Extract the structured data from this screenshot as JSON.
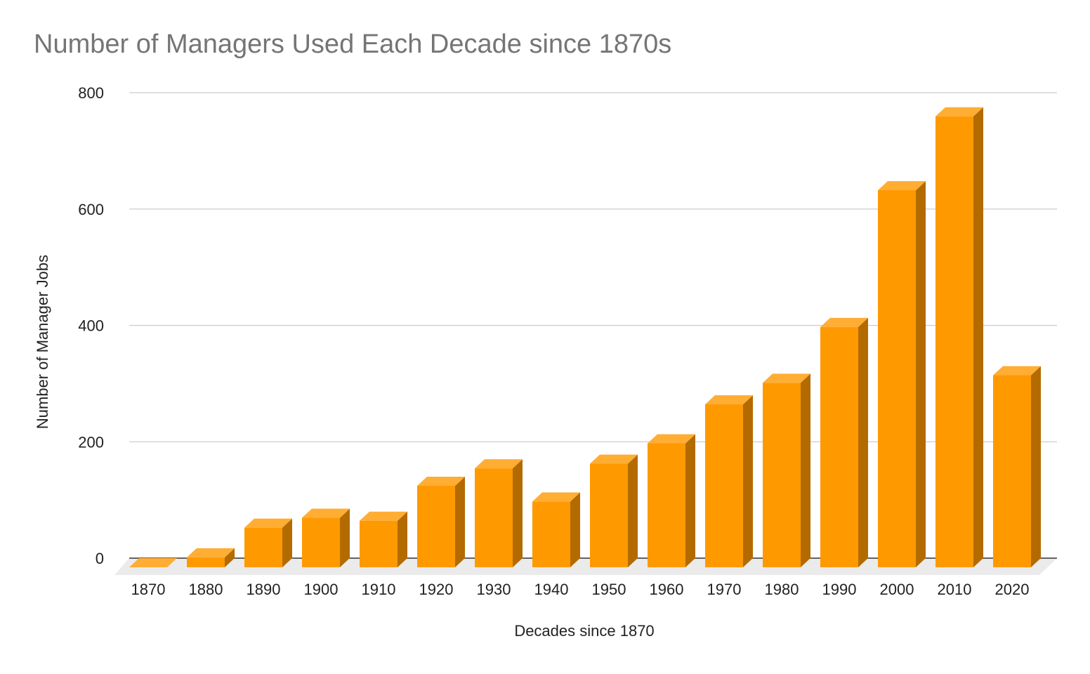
{
  "chart_data": {
    "type": "bar",
    "title": "Number of Managers Used Each Decade since 1870s",
    "xlabel": "Decades since 1870",
    "ylabel": "Number of Manager Jobs",
    "categories": [
      "1870",
      "1880",
      "1890",
      "1900",
      "1910",
      "1920",
      "1930",
      "1940",
      "1950",
      "1960",
      "1970",
      "1980",
      "1990",
      "2000",
      "2010",
      "2020"
    ],
    "values": [
      0,
      17,
      68,
      85,
      80,
      140,
      170,
      113,
      178,
      213,
      280,
      317,
      413,
      648,
      775,
      330
    ],
    "ylim": [
      0,
      800
    ],
    "yticks": [
      "0",
      "200",
      "400",
      "600",
      "800"
    ],
    "grid": true,
    "legend": "none",
    "style": "3d",
    "colors": {
      "bar_front": "#ff9900",
      "bar_top": "#ffad33",
      "bar_side": "#b36b00",
      "grid": "#cccccc",
      "floor": "#ebebeb",
      "baseline": "#333333",
      "title": "#757575"
    }
  }
}
